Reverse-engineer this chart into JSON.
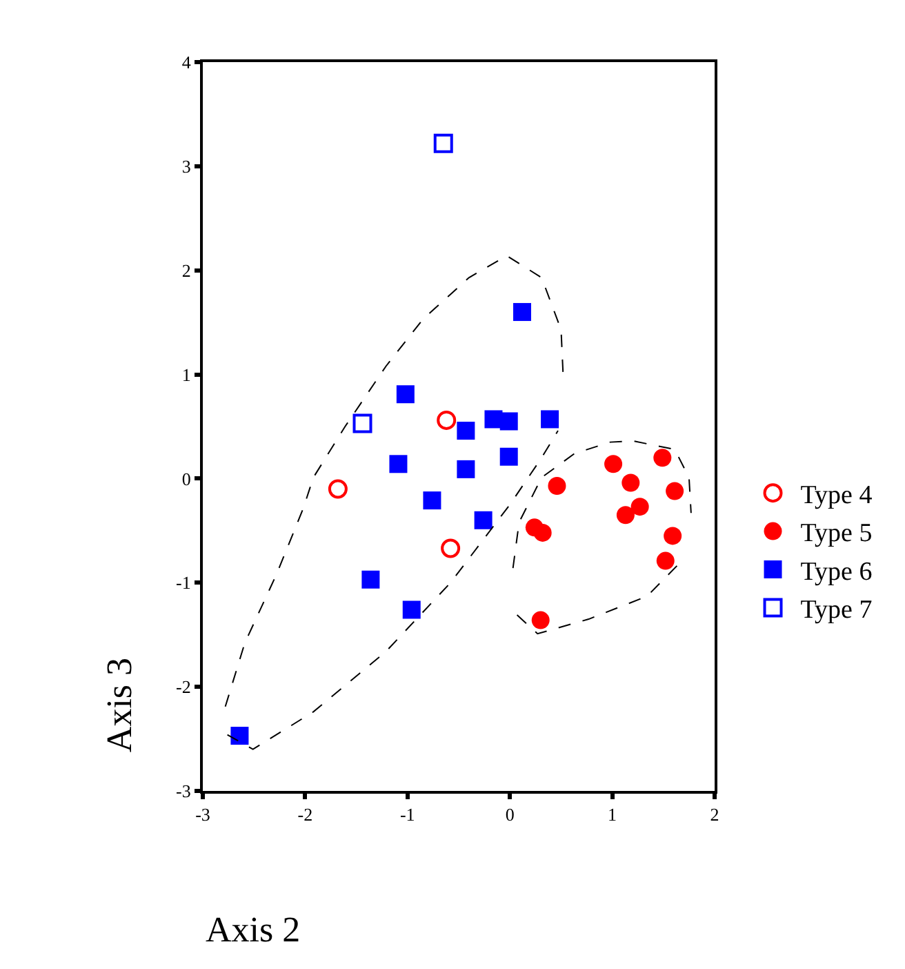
{
  "chart_data": {
    "type": "scatter",
    "xlabel": "Axis 2",
    "ylabel": "Axis 3",
    "xlim": [
      -3,
      2
    ],
    "xticks": [
      -3,
      -2,
      -1,
      0,
      1,
      2
    ],
    "ylim": [
      -3,
      4
    ],
    "yticks": [
      -3,
      -2,
      -1,
      0,
      1,
      2,
      3,
      4
    ],
    "legend": "right",
    "series": [
      {
        "name": "Type 4",
        "color": "#ff0000",
        "marker": "circle-open",
        "x": [
          -0.62,
          -1.68,
          -0.58
        ],
        "values": [
          0.56,
          -0.1,
          -0.67
        ]
      },
      {
        "name": "Type 5",
        "color": "#ff0000",
        "marker": "circle",
        "x": [
          1.01,
          1.49,
          0.46,
          1.18,
          1.61,
          1.27,
          1.13,
          0.24,
          0.32,
          1.59,
          1.52,
          0.3
        ],
        "values": [
          0.14,
          0.2,
          -0.07,
          -0.04,
          -0.12,
          -0.27,
          -0.35,
          -0.47,
          -0.52,
          -0.55,
          -0.79,
          -1.36
        ]
      },
      {
        "name": "Type 6",
        "color": "#0000ff",
        "marker": "square",
        "x": [
          0.12,
          -1.02,
          -0.16,
          -0.01,
          0.39,
          -0.43,
          -0.01,
          -0.43,
          -1.09,
          -0.76,
          -0.26,
          -1.36,
          -0.96,
          -2.64
        ],
        "values": [
          1.6,
          0.81,
          0.57,
          0.55,
          0.57,
          0.46,
          0.21,
          0.09,
          0.14,
          -0.21,
          -0.4,
          -0.97,
          -1.26,
          -2.47
        ]
      },
      {
        "name": "Type 7",
        "color": "#0000ff",
        "marker": "square-open",
        "x": [
          -0.65,
          -1.44
        ],
        "values": [
          3.22,
          0.53
        ]
      },
      {
        "type": "line",
        "color": "#000000",
        "line_style": "dashed",
        "marker": "none",
        "x": [
          -2.78,
          -2.59,
          -2.28,
          -2.02,
          -1.92,
          -1.61,
          -1.21,
          -0.85,
          -0.4,
          -0.03,
          0.31,
          0.5,
          0.52
        ],
        "values": [
          -2.19,
          -1.58,
          -0.92,
          -0.29,
          0.01,
          0.5,
          1.08,
          1.53,
          1.93,
          2.14,
          1.93,
          1.43,
          1.0
        ]
      },
      {
        "type": "line",
        "color": "#000000",
        "line_style": "dashed",
        "marker": "none",
        "x": [
          -2.76,
          -2.51,
          -1.92,
          -1.21,
          -0.58,
          0.0,
          0.31,
          0.47
        ],
        "values": [
          -2.46,
          -2.6,
          -2.24,
          -1.66,
          -1.0,
          -0.25,
          0.2,
          0.46
        ]
      },
      {
        "type": "line",
        "color": "#000000",
        "line_style": "dashed",
        "marker": "none",
        "x": [
          0.03,
          0.09,
          0.31,
          0.63,
          0.98,
          1.21,
          1.61,
          1.75,
          1.77
        ],
        "values": [
          -0.86,
          -0.42,
          0.01,
          0.24,
          0.35,
          0.36,
          0.28,
          0.01,
          -0.33
        ]
      },
      {
        "type": "line",
        "color": "#000000",
        "line_style": "dashed",
        "marker": "none",
        "x": [
          0.07,
          0.27,
          0.77,
          1.34,
          1.65
        ],
        "values": [
          -1.31,
          -1.49,
          -1.35,
          -1.13,
          -0.82
        ]
      }
    ]
  }
}
